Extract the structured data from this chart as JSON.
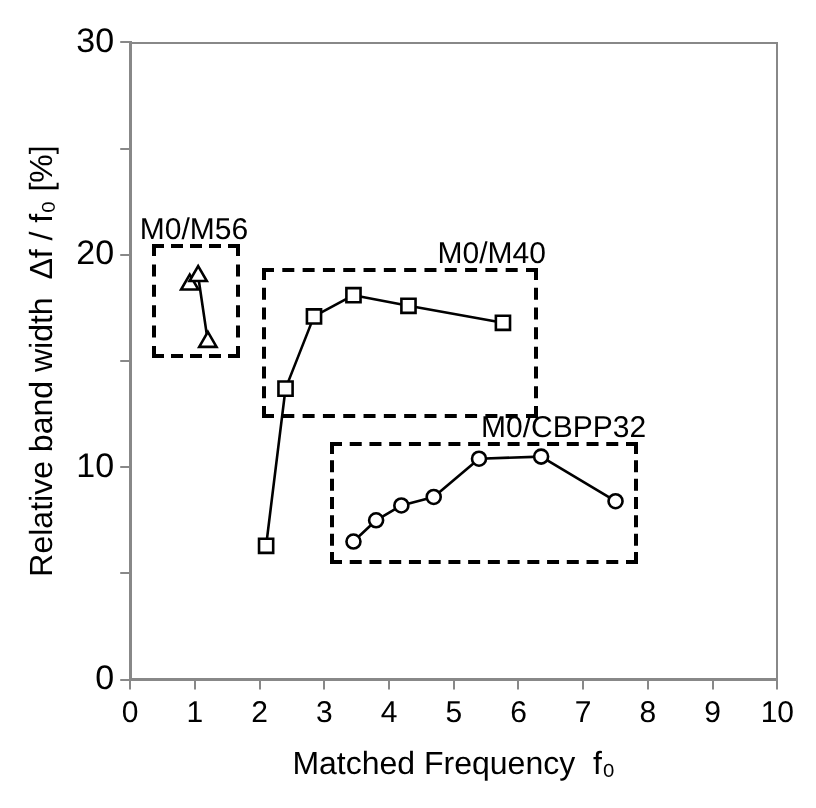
{
  "chart_data": {
    "type": "line",
    "xlabel": "Matched Frequency  f₀",
    "ylabel": "Relative band width  Δf / f₀ [%]",
    "xlim": [
      0,
      10
    ],
    "xticks": [
      0,
      1,
      2,
      3,
      4,
      5,
      6,
      7,
      8,
      9,
      10
    ],
    "ylim": [
      0,
      30
    ],
    "yticks": [
      0,
      {
        "value": 5,
        "label": null
      },
      10,
      {
        "value": 15,
        "label": null
      },
      20,
      {
        "value": 25,
        "label": null
      },
      30
    ],
    "grid": false,
    "legend": false,
    "line_style": "solid",
    "series": [
      {
        "name": "M0/M56",
        "color": "#000000",
        "marker": "triangle",
        "x": [
          0.92,
          1.05,
          1.2
        ],
        "values": [
          18.6,
          19.0,
          15.9
        ]
      },
      {
        "name": "M0/M40",
        "color": "#000000",
        "marker": "square",
        "x": [
          2.1,
          2.4,
          2.84,
          3.45,
          4.3,
          5.76
        ],
        "values": [
          6.3,
          13.7,
          17.1,
          18.1,
          17.6,
          16.8
        ]
      },
      {
        "name": "M0/CBPP32",
        "color": "#000000",
        "marker": "circle",
        "x": [
          3.45,
          3.8,
          4.19,
          4.69,
          5.39,
          6.35,
          7.5
        ],
        "values": [
          6.5,
          7.5,
          8.2,
          8.6,
          10.4,
          10.5,
          8.4
        ]
      }
    ]
  }
}
